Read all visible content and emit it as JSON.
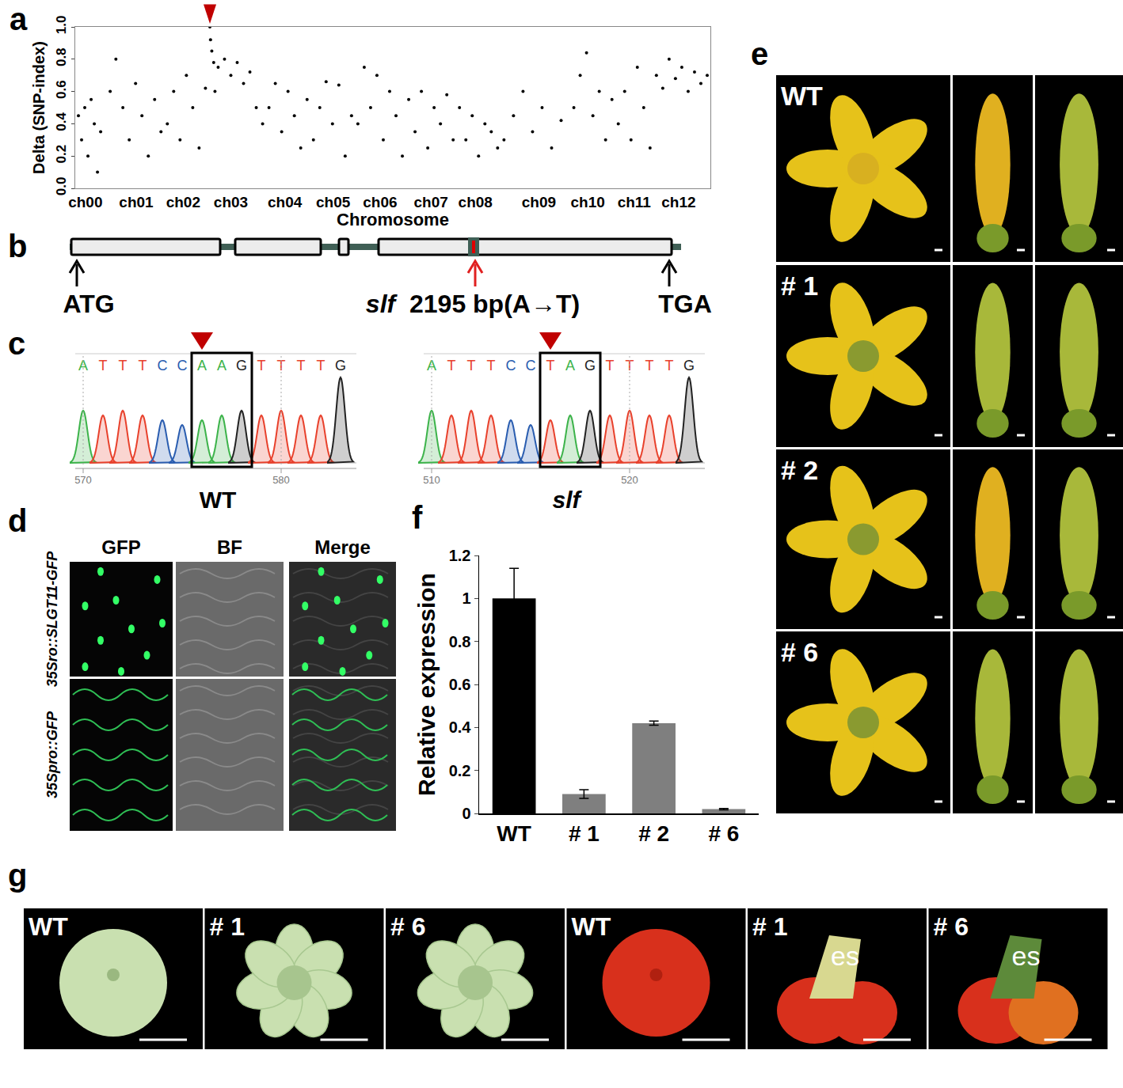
{
  "panel_labels": [
    "a",
    "b",
    "c",
    "d",
    "e",
    "f",
    "g"
  ],
  "chart_data": [
    {
      "type": "scatter",
      "x_label": "Chromosome",
      "y_label": "Delta (SNP-index)",
      "color": "#000000",
      "marker": "dot",
      "x": [
        0.5,
        1,
        1.5,
        2,
        2.5,
        3,
        3.5,
        4,
        5.5,
        6.4,
        7.5,
        8.5,
        9.5,
        10.5,
        11.5,
        12.5,
        13.5,
        14.5,
        15.5,
        16.5,
        17.5,
        18.5,
        19.5,
        20.5,
        21.2,
        21.3,
        21.5,
        21.8,
        22,
        22.5,
        23.5,
        24.5,
        25.5,
        26.5,
        27.5,
        28.5,
        29.5,
        30.5,
        31.5,
        32.5,
        33.5,
        34.5,
        35.5,
        36.5,
        37.5,
        38.5,
        39.5,
        40.5,
        41.5,
        42.5,
        43.5,
        44.5,
        45.5,
        46.5,
        47.5,
        48.5,
        49.5,
        50.5,
        51.5,
        52.5,
        53.5,
        54.5,
        55.5,
        56.5,
        57.5,
        58.5,
        59.5,
        60.5,
        61.5,
        62.5,
        63.5,
        64.5,
        65.5,
        66.5,
        67.5,
        69,
        70.5,
        72,
        73.5,
        75,
        76.5,
        78.5,
        79.5,
        80.5,
        81.5,
        82.5,
        83.5,
        84.5,
        85.5,
        86.5,
        87.5,
        88.5,
        89.5,
        90.5,
        91.5,
        92.5,
        93.5,
        94.5,
        95.5,
        96.5,
        97.5,
        98.5,
        99.5
      ],
      "values": [
        0.45,
        0.3,
        0.5,
        0.2,
        0.55,
        0.4,
        0.1,
        0.35,
        0.6,
        0.8,
        0.5,
        0.3,
        0.65,
        0.45,
        0.2,
        0.55,
        0.35,
        0.4,
        0.6,
        0.3,
        0.7,
        0.5,
        0.25,
        0.62,
        1.0,
        0.92,
        0.85,
        0.78,
        0.6,
        0.75,
        0.8,
        0.7,
        0.78,
        0.65,
        0.72,
        0.5,
        0.4,
        0.5,
        0.65,
        0.35,
        0.6,
        0.45,
        0.25,
        0.55,
        0.3,
        0.5,
        0.66,
        0.4,
        0.64,
        0.2,
        0.45,
        0.4,
        0.75,
        0.5,
        0.7,
        0.3,
        0.6,
        0.45,
        0.2,
        0.55,
        0.35,
        0.6,
        0.25,
        0.5,
        0.4,
        0.58,
        0.3,
        0.5,
        0.3,
        0.45,
        0.2,
        0.4,
        0.35,
        0.25,
        0.3,
        0.45,
        0.6,
        0.35,
        0.5,
        0.25,
        0.42,
        0.5,
        0.7,
        0.84,
        0.45,
        0.6,
        0.3,
        0.55,
        0.4,
        0.6,
        0.3,
        0.75,
        0.5,
        0.25,
        0.7,
        0.62,
        0.8,
        0.68,
        0.75,
        0.6,
        0.72,
        0.65,
        0.7
      ],
      "xlim": [
        0,
        100
      ],
      "xticks": [
        {
          "value": 1.6,
          "label": "ch00"
        },
        {
          "value": 9.6,
          "label": "ch01"
        },
        {
          "value": 17,
          "label": "ch02"
        },
        {
          "value": 24.5,
          "label": "ch03"
        },
        {
          "value": 33,
          "label": "ch04"
        },
        {
          "value": 40.6,
          "label": "ch05"
        },
        {
          "value": 48,
          "label": "ch06"
        },
        {
          "value": 56,
          "label": "ch07"
        },
        {
          "value": 63,
          "label": "ch08"
        },
        {
          "value": 73,
          "label": "ch09"
        },
        {
          "value": 80.7,
          "label": "ch10"
        },
        {
          "value": 88,
          "label": "ch11"
        },
        {
          "value": 95,
          "label": "ch12"
        }
      ],
      "ylim": [
        0,
        1
      ],
      "yticks": [
        {
          "value": 0,
          "label": "0.0"
        },
        0.2,
        0.4,
        0.6,
        0.8,
        {
          "value": 1,
          "label": "1.0"
        }
      ],
      "grid": false
    },
    {
      "type": "bar",
      "y_label": "Relative expression",
      "categories": [
        "WT",
        "# 1",
        "# 2",
        "# 6"
      ],
      "values": [
        1.0,
        0.09,
        0.42,
        0.02
      ],
      "errors": [
        0.14,
        0.02,
        0.01,
        0.003
      ],
      "colors": [
        "#000000",
        "#7f7f7f",
        "#7f7f7f",
        "#7f7f7f"
      ],
      "ylim": [
        0,
        1.2
      ],
      "yticks": [
        0,
        0.2,
        0.4,
        0.6,
        0.8,
        1,
        1.2
      ],
      "grid": false
    }
  ],
  "gene_diagram": {
    "start": "ATG",
    "mutant": "slf",
    "mutation": "2195 bp(A→T)",
    "stop": "TGA"
  },
  "chromatograms": [
    {
      "label": "WT",
      "italic": false,
      "sequence": "ATTTCCAAGTTTTG",
      "ticks": [
        570,
        580
      ]
    },
    {
      "label": "slf",
      "italic": true,
      "sequence": "ATTTCCTAGTTTTG",
      "ticks": [
        510,
        520
      ]
    }
  ],
  "microscopy": {
    "columns": [
      "GFP",
      "BF",
      "Merge"
    ],
    "rows": [
      "35Sro::SLGT11-GFP",
      "35Spro::GFP"
    ]
  },
  "flowers": {
    "rows": [
      "WT",
      "# 1",
      "# 2",
      "# 6"
    ]
  },
  "fruits": [
    {
      "label": "WT"
    },
    {
      "label": "# 1"
    },
    {
      "label": "# 6"
    },
    {
      "label": "WT"
    },
    {
      "label": "# 1",
      "annotation": "es"
    },
    {
      "label": "# 6",
      "annotation": "es"
    }
  ]
}
